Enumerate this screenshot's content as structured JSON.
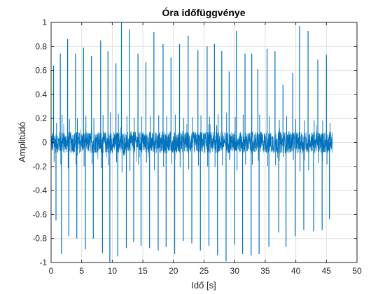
{
  "chart_data": {
    "type": "line",
    "title": "Óra időfüggvénye",
    "xlabel": "Idő [s]",
    "ylabel": "Amplitúdó",
    "xlim": [
      0,
      50
    ],
    "ylim": [
      -1,
      1
    ],
    "xticks": [
      0,
      5,
      10,
      15,
      20,
      25,
      30,
      35,
      40,
      45,
      50
    ],
    "xtick_labels": [
      "0",
      "5",
      "10",
      "15",
      "20",
      "25",
      "30",
      "35",
      "40",
      "45",
      "50"
    ],
    "yticks": [
      -1,
      -0.8,
      -0.6,
      -0.4,
      -0.2,
      0,
      0.2,
      0.4,
      0.6,
      0.8,
      1
    ],
    "ytick_labels": [
      "-1",
      "-0.8",
      "-0.6",
      "-0.4",
      "-0.2",
      "0",
      "0.2",
      "0.4",
      "0.6",
      "0.8",
      "1"
    ],
    "grid": true,
    "line_color": "#0072BD",
    "signal_duration": 46,
    "noise_amplitude": 0.09,
    "ticks": [
      {
        "x": 0.4,
        "y": 0.64
      },
      {
        "x": 0.8,
        "y": -0.65
      },
      {
        "x": 1.5,
        "y": 0.74
      },
      {
        "x": 1.7,
        "y": -0.93
      },
      {
        "x": 2.7,
        "y": 0.86
      },
      {
        "x": 2.9,
        "y": -0.78
      },
      {
        "x": 4.0,
        "y": 0.74
      },
      {
        "x": 4.2,
        "y": -0.8
      },
      {
        "x": 5.3,
        "y": 0.79
      },
      {
        "x": 5.6,
        "y": -0.89
      },
      {
        "x": 6.6,
        "y": 0.72
      },
      {
        "x": 6.9,
        "y": -0.8
      },
      {
        "x": 8.1,
        "y": 0.85
      },
      {
        "x": 8.4,
        "y": -0.92
      },
      {
        "x": 9.3,
        "y": 0.76
      },
      {
        "x": 9.6,
        "y": -1.0
      },
      {
        "x": 10.6,
        "y": 0.66
      },
      {
        "x": 10.9,
        "y": -0.95
      },
      {
        "x": 11.5,
        "y": 1.0
      },
      {
        "x": 12.3,
        "y": -0.88
      },
      {
        "x": 12.8,
        "y": 0.94
      },
      {
        "x": 13.5,
        "y": -0.83
      },
      {
        "x": 14.2,
        "y": 0.74
      },
      {
        "x": 14.7,
        "y": -0.86
      },
      {
        "x": 15.5,
        "y": 0.67
      },
      {
        "x": 16.1,
        "y": -0.88
      },
      {
        "x": 16.8,
        "y": 0.92
      },
      {
        "x": 17.5,
        "y": -0.9
      },
      {
        "x": 18.3,
        "y": 0.82
      },
      {
        "x": 18.8,
        "y": -0.87
      },
      {
        "x": 19.6,
        "y": 0.71
      },
      {
        "x": 20.2,
        "y": -0.93
      },
      {
        "x": 21.0,
        "y": 0.82
      },
      {
        "x": 21.6,
        "y": -0.82
      },
      {
        "x": 22.4,
        "y": 0.89
      },
      {
        "x": 23.0,
        "y": -0.84
      },
      {
        "x": 24.0,
        "y": 0.77
      },
      {
        "x": 24.4,
        "y": -0.9
      },
      {
        "x": 25.5,
        "y": 0.8
      },
      {
        "x": 25.8,
        "y": -0.86
      },
      {
        "x": 26.7,
        "y": 0.82
      },
      {
        "x": 27.2,
        "y": -0.94
      },
      {
        "x": 27.9,
        "y": 0.76
      },
      {
        "x": 28.6,
        "y": -0.99
      },
      {
        "x": 29.1,
        "y": 0.59
      },
      {
        "x": 30.0,
        "y": -0.85
      },
      {
        "x": 30.3,
        "y": 0.93
      },
      {
        "x": 31.3,
        "y": -0.93
      },
      {
        "x": 31.7,
        "y": 0.74
      },
      {
        "x": 32.7,
        "y": -0.94
      },
      {
        "x": 32.8,
        "y": 0.74
      },
      {
        "x": 33.8,
        "y": 0.61
      },
      {
        "x": 34.0,
        "y": -0.93
      },
      {
        "x": 35.3,
        "y": 0.78
      },
      {
        "x": 35.6,
        "y": -0.87
      },
      {
        "x": 36.6,
        "y": 0.76
      },
      {
        "x": 37.2,
        "y": -0.75
      },
      {
        "x": 37.9,
        "y": 0.48
      },
      {
        "x": 38.4,
        "y": -0.87
      },
      {
        "x": 39.5,
        "y": 0.58
      },
      {
        "x": 39.9,
        "y": -0.78
      },
      {
        "x": 40.6,
        "y": 0.97
      },
      {
        "x": 41.3,
        "y": -0.73
      },
      {
        "x": 42.0,
        "y": 0.93
      },
      {
        "x": 42.9,
        "y": -0.74
      },
      {
        "x": 43.6,
        "y": 0.69
      },
      {
        "x": 44.3,
        "y": -0.73
      },
      {
        "x": 45.0,
        "y": 0.73
      },
      {
        "x": 45.5,
        "y": -0.64
      }
    ]
  }
}
